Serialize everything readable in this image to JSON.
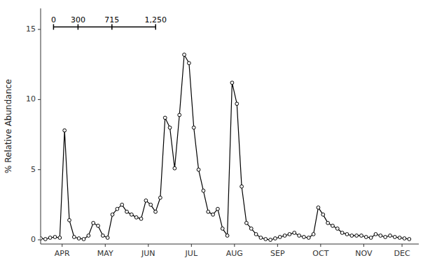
{
  "chart_data": {
    "type": "line",
    "ylabel": "% Relative Abundance",
    "x": [
      0,
      1,
      2,
      3,
      4,
      5,
      6,
      7,
      8,
      9,
      10,
      11,
      12,
      13,
      14,
      15,
      16,
      17,
      18,
      19,
      20,
      21,
      22,
      23,
      24,
      25,
      26,
      27,
      28,
      29,
      30,
      31,
      32,
      33,
      34,
      35,
      36,
      37,
      38,
      39,
      40,
      41,
      42,
      43,
      44,
      45,
      46,
      47,
      48,
      49,
      50,
      51,
      52,
      53,
      54,
      55,
      56,
      57,
      58,
      59,
      60,
      61,
      62,
      63,
      64,
      65,
      66,
      67,
      68,
      69,
      70,
      71,
      72,
      73,
      74,
      75,
      76,
      77
    ],
    "values": [
      0.1,
      0.05,
      0.15,
      0.2,
      0.15,
      7.8,
      1.4,
      0.2,
      0.1,
      0.05,
      0.3,
      1.2,
      1.0,
      0.3,
      0.15,
      1.8,
      2.2,
      2.5,
      2.0,
      1.8,
      1.6,
      1.5,
      2.8,
      2.5,
      2.0,
      3.0,
      8.7,
      8.0,
      5.1,
      8.9,
      13.2,
      12.6,
      8.0,
      5.0,
      3.5,
      2.0,
      1.8,
      2.2,
      0.8,
      0.3,
      11.2,
      9.7,
      3.8,
      1.2,
      0.8,
      0.4,
      0.15,
      0.05,
      0.0,
      0.1,
      0.2,
      0.3,
      0.4,
      0.5,
      0.3,
      0.2,
      0.15,
      0.4,
      2.3,
      1.8,
      1.2,
      1.0,
      0.8,
      0.5,
      0.4,
      0.3,
      0.3,
      0.3,
      0.2,
      0.15,
      0.4,
      0.3,
      0.2,
      0.3,
      0.2,
      0.15,
      0.1,
      0.05
    ],
    "color": "#000000",
    "marker": "circle",
    "xlim": [
      0,
      79
    ],
    "xticks": [
      {
        "value": 4.5,
        "label": "APR"
      },
      {
        "value": 13.5,
        "label": "MAY"
      },
      {
        "value": 22.5,
        "label": "JUN"
      },
      {
        "value": 31.5,
        "label": "JUL"
      },
      {
        "value": 40.5,
        "label": "AUG"
      },
      {
        "value": 49.5,
        "label": "SEP"
      },
      {
        "value": 58.5,
        "label": "OCT"
      },
      {
        "value": 67.5,
        "label": "NOV"
      },
      {
        "value": 75.5,
        "label": "DEC"
      }
    ],
    "ylim": [
      -0.3,
      16.5
    ],
    "yticks": [
      0,
      5,
      10,
      15
    ],
    "grid": false,
    "scale_bar_lim": [
      0,
      1250
    ],
    "scale_bar_ticks": [
      0,
      300,
      715,
      {
        "value": 1250,
        "label": "1,250"
      }
    ]
  }
}
